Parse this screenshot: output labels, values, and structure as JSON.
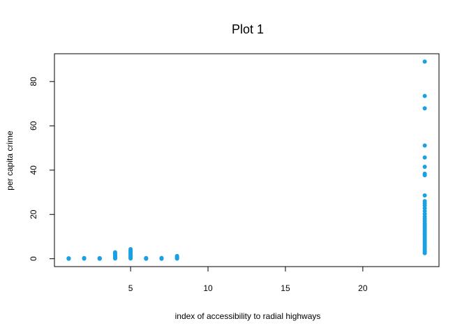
{
  "chart_data": {
    "type": "scatter",
    "title": "Plot 1",
    "xlabel": "index of accessibility to radial highways",
    "ylabel": "per capita crime",
    "xlim": [
      0.08,
      24.92
    ],
    "ylim": [
      -3.56,
      92.55
    ],
    "xticks": [
      "5",
      "10",
      "15",
      "20"
    ],
    "yticks": [
      "0",
      "20",
      "40",
      "60",
      "80"
    ],
    "point_color": "#1BA1E2",
    "grid": false,
    "legend": "none",
    "points": [
      {
        "x": 1,
        "y": 0.0
      },
      {
        "x": 1,
        "y": 0.05
      },
      {
        "x": 1,
        "y": 0.1
      },
      {
        "x": 1,
        "y": 0.15
      },
      {
        "x": 1,
        "y": 0.2
      },
      {
        "x": 2,
        "y": 0.05
      },
      {
        "x": 2,
        "y": 0.1
      },
      {
        "x": 2,
        "y": 0.2
      },
      {
        "x": 2,
        "y": 0.3
      },
      {
        "x": 3,
        "y": 0.0
      },
      {
        "x": 3,
        "y": 0.05
      },
      {
        "x": 3,
        "y": 0.1
      },
      {
        "x": 3,
        "y": 0.15
      },
      {
        "x": 3,
        "y": 0.25
      },
      {
        "x": 4,
        "y": 0.1
      },
      {
        "x": 4,
        "y": 0.3
      },
      {
        "x": 4,
        "y": 0.5
      },
      {
        "x": 4,
        "y": 0.8
      },
      {
        "x": 4,
        "y": 1.1
      },
      {
        "x": 4,
        "y": 1.5
      },
      {
        "x": 4,
        "y": 2.0
      },
      {
        "x": 4,
        "y": 2.5
      },
      {
        "x": 4,
        "y": 2.9
      },
      {
        "x": 5,
        "y": 0.1
      },
      {
        "x": 5,
        "y": 0.3
      },
      {
        "x": 5,
        "y": 0.6
      },
      {
        "x": 5,
        "y": 1.0
      },
      {
        "x": 5,
        "y": 1.4
      },
      {
        "x": 5,
        "y": 1.8
      },
      {
        "x": 5,
        "y": 2.2
      },
      {
        "x": 5,
        "y": 2.6
      },
      {
        "x": 5,
        "y": 3.0
      },
      {
        "x": 5,
        "y": 3.4
      },
      {
        "x": 5,
        "y": 3.8
      },
      {
        "x": 5,
        "y": 4.3
      },
      {
        "x": 6,
        "y": 0.0
      },
      {
        "x": 6,
        "y": 0.1
      },
      {
        "x": 6,
        "y": 0.2
      },
      {
        "x": 6,
        "y": 0.3
      },
      {
        "x": 7,
        "y": 0.0
      },
      {
        "x": 7,
        "y": 0.1
      },
      {
        "x": 7,
        "y": 0.2
      },
      {
        "x": 7,
        "y": 0.35
      },
      {
        "x": 8,
        "y": 0.05
      },
      {
        "x": 8,
        "y": 0.2
      },
      {
        "x": 8,
        "y": 0.4
      },
      {
        "x": 8,
        "y": 0.6
      },
      {
        "x": 8,
        "y": 0.9
      },
      {
        "x": 8,
        "y": 1.2
      },
      {
        "x": 24,
        "y": 2.5
      },
      {
        "x": 24,
        "y": 3.2
      },
      {
        "x": 24,
        "y": 4.0
      },
      {
        "x": 24,
        "y": 4.8
      },
      {
        "x": 24,
        "y": 5.6
      },
      {
        "x": 24,
        "y": 6.4
      },
      {
        "x": 24,
        "y": 7.2
      },
      {
        "x": 24,
        "y": 8.0
      },
      {
        "x": 24,
        "y": 8.8
      },
      {
        "x": 24,
        "y": 9.6
      },
      {
        "x": 24,
        "y": 10.4
      },
      {
        "x": 24,
        "y": 11.2
      },
      {
        "x": 24,
        "y": 12.0
      },
      {
        "x": 24,
        "y": 12.8
      },
      {
        "x": 24,
        "y": 13.6
      },
      {
        "x": 24,
        "y": 14.4
      },
      {
        "x": 24,
        "y": 15.2
      },
      {
        "x": 24,
        "y": 16.0
      },
      {
        "x": 24,
        "y": 17.0
      },
      {
        "x": 24,
        "y": 18.0
      },
      {
        "x": 24,
        "y": 19.0
      },
      {
        "x": 24,
        "y": 20.2
      },
      {
        "x": 24,
        "y": 21.5
      },
      {
        "x": 24,
        "y": 22.8
      },
      {
        "x": 24,
        "y": 24.0
      },
      {
        "x": 24,
        "y": 25.0
      },
      {
        "x": 24,
        "y": 26.0
      },
      {
        "x": 24,
        "y": 28.6
      },
      {
        "x": 24,
        "y": 37.7
      },
      {
        "x": 24,
        "y": 38.4
      },
      {
        "x": 24,
        "y": 41.5
      },
      {
        "x": 24,
        "y": 45.7
      },
      {
        "x": 24,
        "y": 51.1
      },
      {
        "x": 24,
        "y": 67.9
      },
      {
        "x": 24,
        "y": 73.5
      },
      {
        "x": 24,
        "y": 89.0
      }
    ]
  }
}
